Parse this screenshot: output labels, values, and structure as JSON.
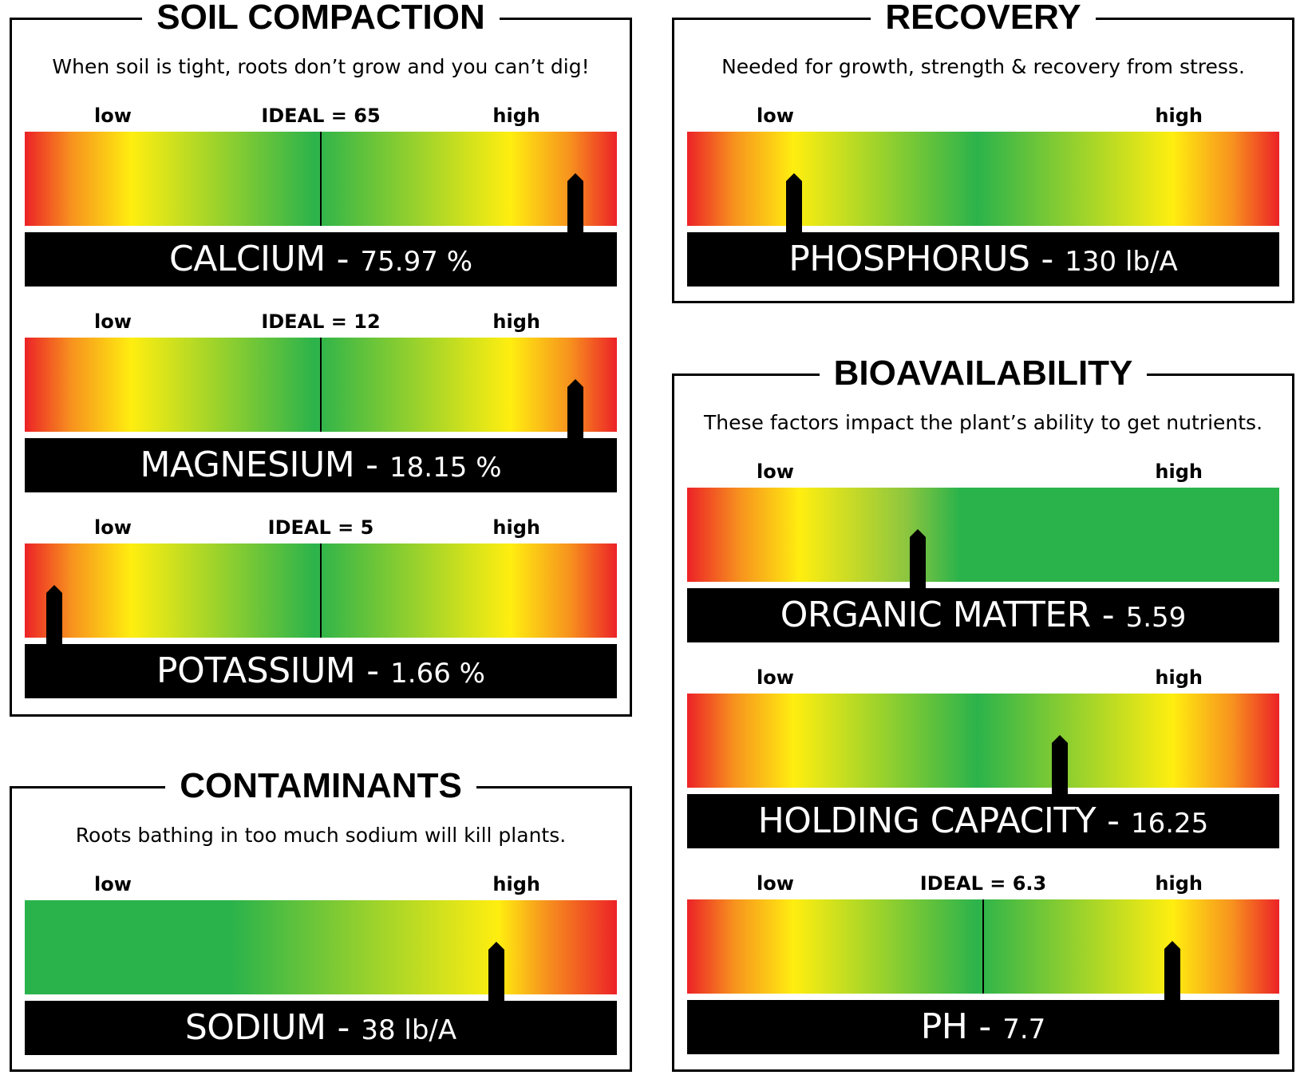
{
  "panels": {
    "soil": {
      "title": "SOIL COMPACTION",
      "desc": "When soil is tight, roots don’t grow and you can’t dig!"
    },
    "recovery": {
      "title": "RECOVERY",
      "desc": "Needed for growth, strength & recovery from stress."
    },
    "contaminants": {
      "title": "CONTAMINANTS",
      "desc": "Roots bathing in too much sodium will kill plants."
    },
    "bio": {
      "title": "BIOAVAILABILITY",
      "desc": "These factors impact the plant’s ability to get nutrients."
    }
  },
  "chart_data": [
    {
      "type": "gauge",
      "panel": "SOIL COMPACTION",
      "name": "CALCIUM",
      "value_label": "75.97 %",
      "value": 75.97,
      "unit": "%",
      "ideal_label": "IDEAL = 65",
      "ideal": 65,
      "low_label": "low",
      "high_label": "high",
      "pointer_fraction": 0.93,
      "ideal_fraction": 0.5,
      "scale": "red-yellow-green-yellow-red"
    },
    {
      "type": "gauge",
      "panel": "SOIL COMPACTION",
      "name": "MAGNESIUM",
      "value_label": "18.15 %",
      "value": 18.15,
      "unit": "%",
      "ideal_label": "IDEAL = 12",
      "ideal": 12,
      "low_label": "low",
      "high_label": "high",
      "pointer_fraction": 0.93,
      "ideal_fraction": 0.5,
      "scale": "red-yellow-green-yellow-red"
    },
    {
      "type": "gauge",
      "panel": "SOIL COMPACTION",
      "name": "POTASSIUM",
      "value_label": "1.66 %",
      "value": 1.66,
      "unit": "%",
      "ideal_label": "IDEAL = 5",
      "ideal": 5,
      "low_label": "low",
      "high_label": "high",
      "pointer_fraction": 0.05,
      "ideal_fraction": 0.5,
      "scale": "red-yellow-green-yellow-red"
    },
    {
      "type": "gauge",
      "panel": "RECOVERY",
      "name": "PHOSPHORUS",
      "value_label": "130 lb/A",
      "value": 130,
      "unit": "lb/A",
      "ideal_label": "",
      "low_label": "low",
      "high_label": "high",
      "pointer_fraction": 0.18,
      "scale": "red-yellow-green-yellow-red"
    },
    {
      "type": "gauge",
      "panel": "CONTAMINANTS",
      "name": "SODIUM",
      "value_label": "38 lb/A",
      "value": 38,
      "unit": "lb/A",
      "ideal_label": "",
      "low_label": "low",
      "high_label": "high",
      "pointer_fraction": 0.797,
      "scale": "green-yellow-red"
    },
    {
      "type": "gauge",
      "panel": "BIOAVAILABILITY",
      "name": "ORGANIC MATTER",
      "value_label": "5.59",
      "value": 5.59,
      "ideal_label": "",
      "low_label": "low",
      "high_label": "high",
      "pointer_fraction": 0.39,
      "scale": "red-yellow-green"
    },
    {
      "type": "gauge",
      "panel": "BIOAVAILABILITY",
      "name": "HOLDING CAPACITY",
      "value_label": "16.25",
      "value": 16.25,
      "ideal_label": "",
      "low_label": "low",
      "high_label": "high",
      "pointer_fraction": 0.63,
      "scale": "red-yellow-green-yellow-red"
    },
    {
      "type": "gauge",
      "panel": "BIOAVAILABILITY",
      "name": "PH",
      "value_label": "7.7",
      "value": 7.7,
      "ideal_label": "IDEAL = 6.3",
      "ideal": 6.3,
      "low_label": "low",
      "high_label": "high",
      "pointer_fraction": 0.82,
      "ideal_fraction": 0.5,
      "scale": "red-yellow-green-yellow-red"
    }
  ]
}
